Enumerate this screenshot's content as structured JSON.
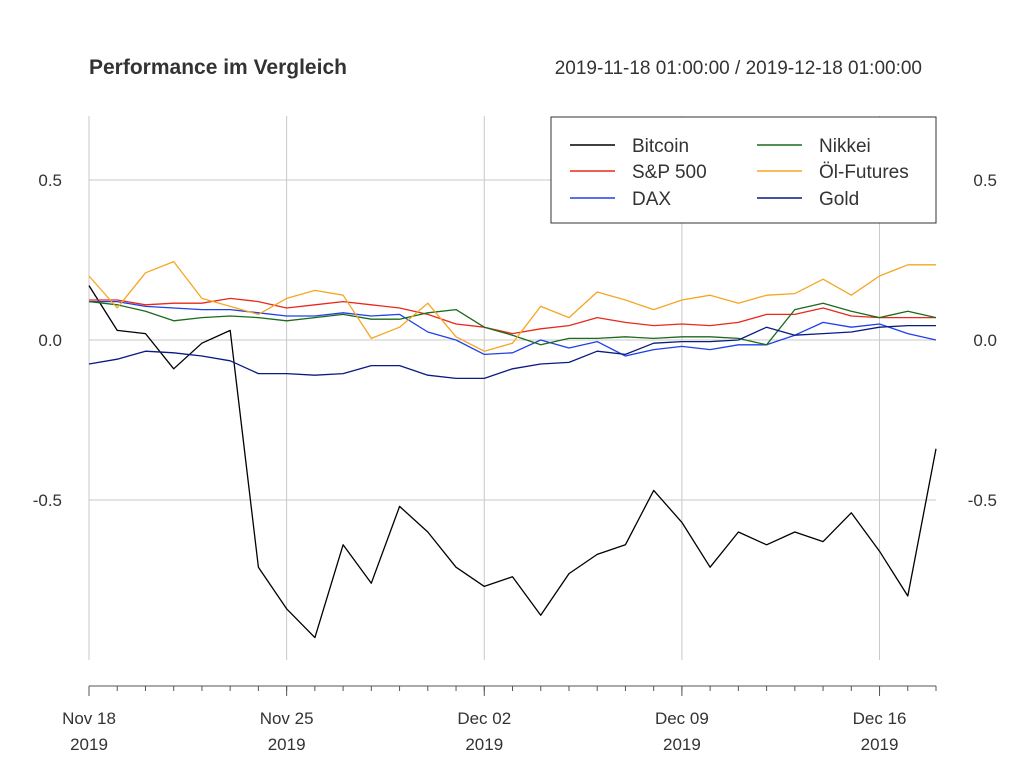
{
  "header": {
    "title": "Performance im Vergleich",
    "date_range": "2019-11-18 01:00:00 / 2019-12-18 01:00:00"
  },
  "chart_data": {
    "type": "line",
    "title": "Performance im Vergleich",
    "xlabel": "",
    "ylabel": "",
    "xlim": [
      "2019-11-18",
      "2019-12-18"
    ],
    "ylim": [
      -1.0,
      0.7
    ],
    "grid": true,
    "legend_position": "top-right",
    "y_ticks": [
      {
        "value": 0.5,
        "label": "0.5"
      },
      {
        "value": 0.0,
        "label": "0.0"
      },
      {
        "value": -0.5,
        "label": "-0.5"
      }
    ],
    "x_ticks": [
      {
        "date": "2019-11-18",
        "label1": "Nov 18",
        "label2": "2019"
      },
      {
        "date": "2019-11-25",
        "label1": "Nov 25",
        "label2": "2019"
      },
      {
        "date": "2019-12-02",
        "label1": "Dec 02",
        "label2": "2019"
      },
      {
        "date": "2019-12-09",
        "label1": "Dec 09",
        "label2": "2019"
      },
      {
        "date": "2019-12-16",
        "label1": "Dec 16",
        "label2": "2019"
      }
    ],
    "x": [
      "2019-11-18",
      "2019-11-19",
      "2019-11-20",
      "2019-11-21",
      "2019-11-22",
      "2019-11-23",
      "2019-11-24",
      "2019-11-25",
      "2019-11-26",
      "2019-11-27",
      "2019-11-28",
      "2019-11-29",
      "2019-11-30",
      "2019-12-01",
      "2019-12-02",
      "2019-12-03",
      "2019-12-04",
      "2019-12-05",
      "2019-12-06",
      "2019-12-07",
      "2019-12-08",
      "2019-12-09",
      "2019-12-10",
      "2019-12-11",
      "2019-12-12",
      "2019-12-13",
      "2019-12-14",
      "2019-12-15",
      "2019-12-16",
      "2019-12-17",
      "2019-12-18"
    ],
    "series": [
      {
        "name": "Bitcoin",
        "color": "#000000",
        "values": [
          0.17,
          0.03,
          0.02,
          -0.09,
          -0.01,
          0.03,
          -0.71,
          -0.84,
          -0.93,
          -0.64,
          -0.76,
          -0.52,
          -0.6,
          -0.71,
          -0.77,
          -0.74,
          -0.86,
          -0.73,
          -0.67,
          -0.64,
          -0.47,
          -0.57,
          -0.71,
          -0.6,
          -0.64,
          -0.6,
          -0.63,
          -0.54,
          -0.66,
          -0.8,
          -0.34
        ]
      },
      {
        "name": "S&P 500",
        "color": "#e8291c",
        "values": [
          0.125,
          0.125,
          0.11,
          0.115,
          0.115,
          0.13,
          0.12,
          0.1,
          0.11,
          0.12,
          0.11,
          0.1,
          0.08,
          0.05,
          0.04,
          0.02,
          0.035,
          0.045,
          0.07,
          0.055,
          0.045,
          0.05,
          0.045,
          0.055,
          0.08,
          0.08,
          0.1,
          0.075,
          0.07,
          0.07,
          0.07
        ]
      },
      {
        "name": "DAX",
        "color": "#2040e8",
        "values": [
          0.12,
          0.12,
          0.105,
          0.1,
          0.095,
          0.095,
          0.085,
          0.075,
          0.075,
          0.085,
          0.075,
          0.08,
          0.025,
          0.0,
          -0.045,
          -0.04,
          0.0,
          -0.025,
          -0.005,
          -0.05,
          -0.03,
          -0.02,
          -0.03,
          -0.015,
          -0.015,
          0.015,
          0.055,
          0.04,
          0.05,
          0.02,
          0.0
        ]
      },
      {
        "name": "Nikkei",
        "color": "#1a6b1a",
        "values": [
          0.12,
          0.11,
          0.09,
          0.06,
          0.07,
          0.075,
          0.07,
          0.06,
          0.07,
          0.08,
          0.065,
          0.065,
          0.085,
          0.095,
          0.04,
          0.015,
          -0.015,
          0.005,
          0.005,
          0.01,
          0.005,
          0.01,
          0.01,
          0.005,
          -0.015,
          0.095,
          0.115,
          0.09,
          0.07,
          0.09,
          0.07
        ]
      },
      {
        "name": "Öl-Futures",
        "color": "#f5a623",
        "values": [
          0.2,
          0.1,
          0.21,
          0.245,
          0.13,
          0.105,
          0.08,
          0.13,
          0.155,
          0.14,
          0.005,
          0.04,
          0.115,
          0.01,
          -0.035,
          -0.01,
          0.105,
          0.07,
          0.15,
          0.125,
          0.095,
          0.125,
          0.14,
          0.115,
          0.14,
          0.145,
          0.19,
          0.14,
          0.2,
          0.235,
          0.235
        ]
      },
      {
        "name": "Gold",
        "color": "#0a1a80",
        "values": [
          -0.075,
          -0.06,
          -0.035,
          -0.04,
          -0.05,
          -0.065,
          -0.105,
          -0.105,
          -0.11,
          -0.105,
          -0.08,
          -0.08,
          -0.11,
          -0.12,
          -0.12,
          -0.09,
          -0.075,
          -0.07,
          -0.035,
          -0.045,
          -0.01,
          -0.005,
          -0.005,
          0.0,
          0.04,
          0.015,
          0.02,
          0.025,
          0.04,
          0.045,
          0.045
        ]
      }
    ]
  }
}
